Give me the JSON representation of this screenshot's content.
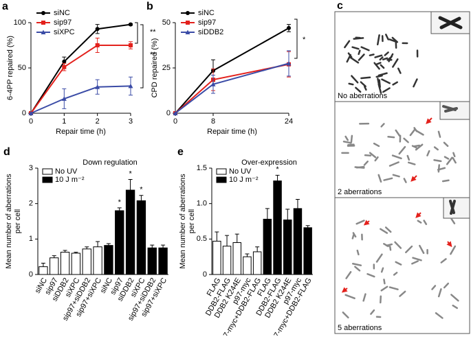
{
  "chart_data": [
    {
      "type": "line",
      "panel": "a",
      "xlabel": "Repair time (h)",
      "ylabel": "6-4PP repaired (%)",
      "x": [
        0,
        1,
        2,
        3
      ],
      "xlim": [
        0,
        3
      ],
      "xticks": [
        0,
        1,
        2,
        3
      ],
      "ylim": [
        0,
        100
      ],
      "yticks": [
        0,
        50,
        100
      ],
      "series": [
        {
          "name": "siNC",
          "color": "#000000",
          "marker": "circle",
          "values": [
            0,
            57,
            93,
            98
          ],
          "errors": [
            0,
            5,
            5,
            1
          ]
        },
        {
          "name": "sip97",
          "color": "#e3211c",
          "marker": "square",
          "values": [
            0,
            51,
            75,
            75
          ],
          "errors": [
            0,
            4,
            8,
            4
          ]
        },
        {
          "name": "siXPC",
          "color": "#3a4ba6",
          "marker": "triangle",
          "values": [
            0,
            16,
            29,
            30
          ],
          "errors": [
            0,
            11,
            8,
            10
          ]
        }
      ],
      "annotations": [
        "**",
        "**"
      ]
    },
    {
      "type": "line",
      "panel": "b",
      "xlabel": "Repair time (h)",
      "ylabel": "CPD repaired (%)",
      "x": [
        0,
        8,
        24
      ],
      "xlim": [
        0,
        24
      ],
      "xticks": [
        0,
        8,
        24
      ],
      "ylim": [
        0,
        50
      ],
      "yticks": [
        0,
        25,
        50
      ],
      "series": [
        {
          "name": "siNC",
          "color": "#000000",
          "marker": "circle",
          "values": [
            0,
            23.5,
            47
          ],
          "errors": [
            0,
            6,
            2
          ]
        },
        {
          "name": "sip97",
          "color": "#e3211c",
          "marker": "square",
          "values": [
            0,
            18.5,
            27
          ],
          "errors": [
            0,
            6,
            7
          ]
        },
        {
          "name": "siDDB2",
          "color": "#3a4ba6",
          "marker": "triangle",
          "values": [
            0,
            16,
            27.5
          ],
          "errors": [
            0,
            5,
            7
          ]
        }
      ],
      "annotations": [
        "*"
      ]
    },
    {
      "type": "bar",
      "panel": "d",
      "title": "Down regulation",
      "ylabel": [
        "Mean number of aberrations",
        "per cell"
      ],
      "categories": [
        "siNC",
        "sip97",
        "siDDB2",
        "siXPC",
        "sip97+siDDB2",
        "sip97+siXPC",
        "siNC",
        "sip97",
        "siDDB2",
        "siXPC",
        "sip97+siDDB2",
        "sip97+siXPC"
      ],
      "ylim": [
        0,
        3
      ],
      "yticks": [
        0,
        1,
        2,
        3
      ],
      "series": [
        {
          "name": "No UV",
          "color": "#ffffff",
          "values": [
            0.22,
            0.47,
            0.63,
            0.6,
            0.72,
            0.78,
            null,
            null,
            null,
            null,
            null,
            null
          ],
          "errors": [
            0.1,
            0.06,
            0.05,
            0.03,
            0.06,
            0.15,
            null,
            null,
            null,
            null,
            null,
            null
          ]
        },
        {
          "name": "10 J m⁻²",
          "color": "#000000",
          "values": [
            null,
            null,
            null,
            null,
            null,
            null,
            0.82,
            1.8,
            2.38,
            2.08,
            0.75,
            0.75
          ],
          "errors": [
            null,
            null,
            null,
            null,
            null,
            null,
            0.05,
            0.08,
            0.3,
            0.15,
            0.08,
            0.08
          ]
        }
      ],
      "annotations": [
        "*",
        "*",
        "*"
      ]
    },
    {
      "type": "bar",
      "panel": "e",
      "title": "Over-expression",
      "ylabel": [
        "Mean number of aberrations",
        "per cell"
      ],
      "categories": [
        "FLAG",
        "DDB2-FLAG",
        "DDB2 K244E",
        "p97-myc",
        "p97-myc+DDB2-FLAG",
        "FLAG",
        "DDB2-FLAG",
        "DDB2 K244E",
        "p97-myc",
        "p97-myc+DDB2-FLAG"
      ],
      "ylim": [
        0,
        1.5
      ],
      "yticks": [
        0,
        0.5,
        {
          "value": 1,
          "label": "1.0"
        },
        1.5
      ],
      "series": [
        {
          "name": "No UV",
          "color": "#ffffff",
          "values": [
            0.47,
            0.4,
            0.45,
            0.25,
            0.32,
            null,
            null,
            null,
            null,
            null
          ],
          "errors": [
            0.13,
            0.15,
            0.12,
            0.04,
            0.07,
            null,
            null,
            null,
            null,
            null
          ]
        },
        {
          "name": "10 J m⁻²",
          "color": "#000000",
          "values": [
            null,
            null,
            null,
            null,
            null,
            0.78,
            1.32,
            0.77,
            0.93,
            0.66
          ],
          "errors": [
            null,
            null,
            null,
            null,
            null,
            0.15,
            0.08,
            0.15,
            0.13,
            0.03
          ]
        }
      ],
      "annotations": [
        "*"
      ]
    }
  ],
  "panel_c": {
    "label": "c",
    "captions": [
      "No aberrations",
      "2 aberrations",
      "5 aberrations"
    ]
  }
}
